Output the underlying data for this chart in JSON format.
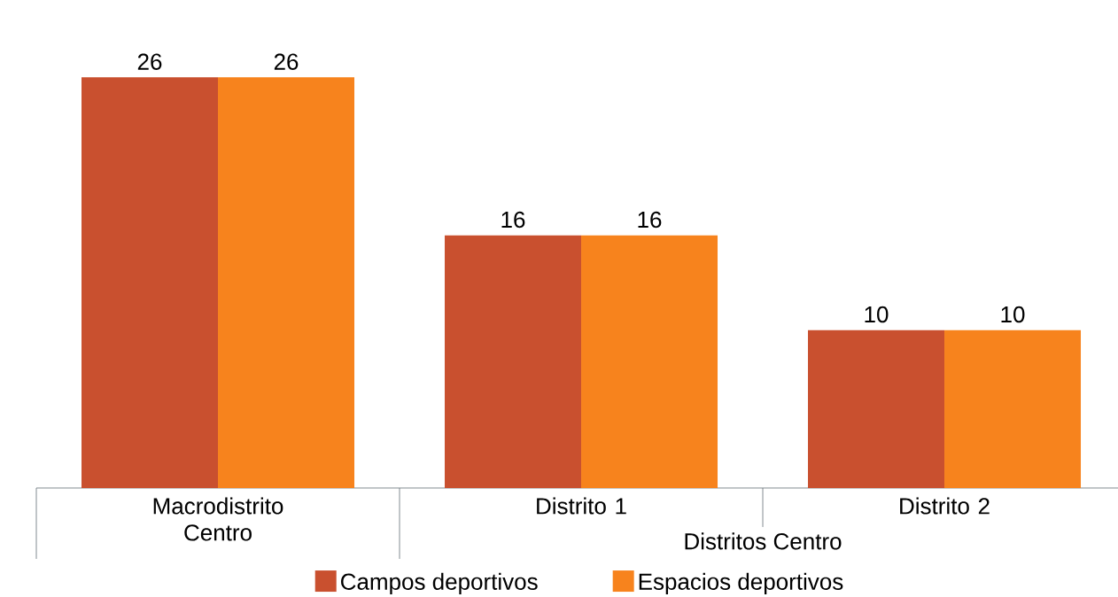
{
  "chart_data": {
    "type": "bar",
    "categories": [
      "Macrodistrito Centro",
      "Distrito 1",
      "Distrito 2"
    ],
    "series": [
      {
        "name": "Campos deportivos",
        "color": "#c9502f",
        "values": [
          26,
          16,
          10
        ]
      },
      {
        "name": "Espacios deportivos",
        "color": "#f7831d",
        "values": [
          26,
          16,
          10
        ]
      }
    ],
    "data_labels": true,
    "legend": "bottom",
    "annotations": [
      "Distritos Centro"
    ]
  }
}
